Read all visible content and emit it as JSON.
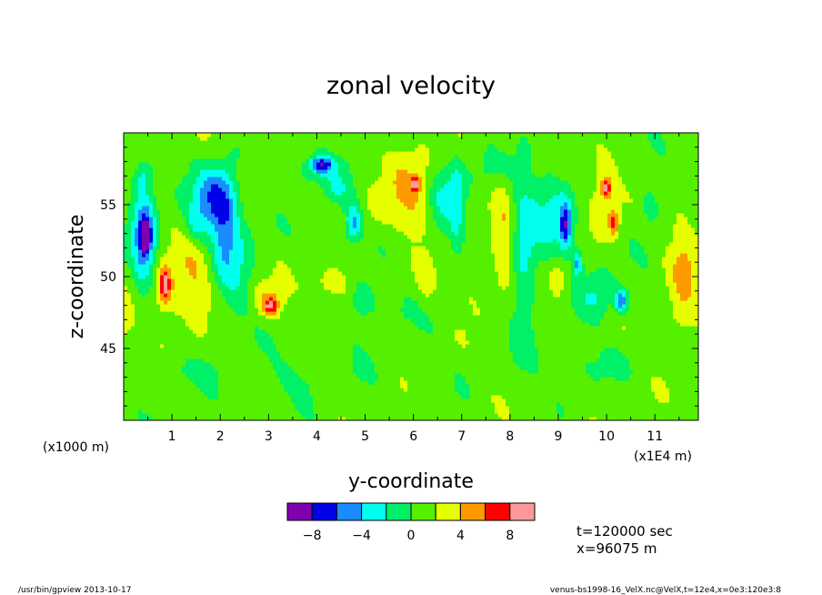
{
  "chart_data": {
    "type": "heatmap",
    "title": "zonal velocity",
    "xlabel": "y-coordinate",
    "ylabel": "z-coordinate",
    "x_unit_note": "(x1E4 m)",
    "y_unit_note": "(x1000 m)",
    "x_ticks": [
      "1",
      "2",
      "3",
      "4",
      "5",
      "6",
      "7",
      "8",
      "9",
      "10",
      "11"
    ],
    "y_ticks": [
      "45",
      "50",
      "55"
    ],
    "xlim": [
      0,
      11.9
    ],
    "ylim": [
      40,
      60
    ],
    "colorbar": {
      "colors": [
        "#8000b0",
        "#0000e6",
        "#1a8cff",
        "#00ffee",
        "#00f068",
        "#55f000",
        "#e6ff00",
        "#ff9900",
        "#ff0000",
        "#ff9999"
      ],
      "boundaries": [
        -10,
        -8,
        -6,
        -4,
        -2,
        0,
        2,
        4,
        6,
        8,
        10
      ],
      "tick_labels": [
        "-8",
        "-4",
        "0",
        "4",
        "8"
      ],
      "tick_values": [
        -8,
        -4,
        0,
        4,
        8
      ]
    },
    "annotations": {
      "time": "t=120000 sec",
      "position": "x=96075 m",
      "footer_left": "/usr/bin/gpview   2013-10-17",
      "footer_right": "venus-bs1998-16_VelX.nc@VelX,t=12e4,x=0e3:120e3:8"
    },
    "features": [
      {
        "y": 0.43,
        "z": 52.8,
        "ry": 0.25,
        "rz": 3.5,
        "v": -7
      },
      {
        "y": 0.45,
        "z": 52.8,
        "ry": 0.09,
        "rz": 1.0,
        "v": -9
      },
      {
        "y": 1.88,
        "z": 55.5,
        "ry": 0.45,
        "rz": 2.2,
        "v": -6.5
      },
      {
        "y": 2.05,
        "z": 53.5,
        "ry": 0.25,
        "rz": 3.0,
        "v": -3.5
      },
      {
        "y": 2.3,
        "z": 51.0,
        "ry": 0.35,
        "rz": 4.0,
        "v": -3
      },
      {
        "y": 4.0,
        "z": 57.6,
        "ry": 0.45,
        "rz": 1.2,
        "v": -3
      },
      {
        "y": 4.1,
        "z": 57.8,
        "ry": 0.22,
        "rz": 0.5,
        "v": -7
      },
      {
        "y": 4.75,
        "z": 53.8,
        "ry": 0.18,
        "rz": 1.3,
        "v": -6
      },
      {
        "y": 4.4,
        "z": 56.0,
        "ry": 0.25,
        "rz": 1.0,
        "v": -3
      },
      {
        "y": 4.95,
        "z": 48.5,
        "ry": 0.3,
        "rz": 1.5,
        "v": -3
      },
      {
        "y": 6.65,
        "z": 55.8,
        "ry": 0.35,
        "rz": 2.0,
        "v": -3
      },
      {
        "y": 6.9,
        "z": 54.5,
        "ry": 0.15,
        "rz": 3.5,
        "v": -3
      },
      {
        "y": 8.3,
        "z": 51.5,
        "ry": 0.25,
        "rz": 6.0,
        "v": -3.5
      },
      {
        "y": 8.9,
        "z": 54.5,
        "ry": 0.45,
        "rz": 3.0,
        "v": -3.5
      },
      {
        "y": 9.15,
        "z": 53.5,
        "ry": 0.12,
        "rz": 1.6,
        "v": -7
      },
      {
        "y": 9.4,
        "z": 51.0,
        "ry": 0.1,
        "rz": 0.9,
        "v": -6
      },
      {
        "y": 9.8,
        "z": 48.8,
        "ry": 0.35,
        "rz": 1.8,
        "v": -3
      },
      {
        "y": 10.3,
        "z": 48.3,
        "ry": 0.15,
        "rz": 0.8,
        "v": -7
      },
      {
        "y": 10.9,
        "z": 55.0,
        "ry": 0.18,
        "rz": 1.2,
        "v": -3
      },
      {
        "y": 1.5,
        "z": 53.5,
        "ry": 0.2,
        "rz": 1.2,
        "v": -3
      },
      {
        "y": 0.4,
        "z": 57.0,
        "ry": 0.2,
        "rz": 1.0,
        "v": -3
      },
      {
        "y": 0.85,
        "z": 49.0,
        "ry": 0.35,
        "rz": 2.5,
        "v": 3
      },
      {
        "y": 0.85,
        "z": 49.5,
        "ry": 0.1,
        "rz": 1.0,
        "v": 6.5
      },
      {
        "y": 1.45,
        "z": 49.8,
        "ry": 0.35,
        "rz": 3.0,
        "v": 2.7
      },
      {
        "y": 3.0,
        "z": 48.3,
        "ry": 0.35,
        "rz": 1.3,
        "v": 3
      },
      {
        "y": 3.05,
        "z": 48.0,
        "ry": 0.12,
        "rz": 0.5,
        "v": 6
      },
      {
        "y": 4.3,
        "z": 49.5,
        "ry": 0.5,
        "rz": 1.2,
        "v": 2.5
      },
      {
        "y": 5.95,
        "z": 56.0,
        "ry": 0.5,
        "rz": 3.5,
        "v": 3
      },
      {
        "y": 6.05,
        "z": 56.5,
        "ry": 0.1,
        "rz": 0.5,
        "v": 6
      },
      {
        "y": 6.3,
        "z": 50.0,
        "ry": 0.2,
        "rz": 1.5,
        "v": 2.5
      },
      {
        "y": 7.85,
        "z": 53.0,
        "ry": 0.2,
        "rz": 4.0,
        "v": 2.5
      },
      {
        "y": 9.0,
        "z": 50.0,
        "ry": 0.18,
        "rz": 1.5,
        "v": 2.5
      },
      {
        "y": 9.95,
        "z": 56.0,
        "ry": 0.35,
        "rz": 2.5,
        "v": 3
      },
      {
        "y": 10.0,
        "z": 56.2,
        "ry": 0.1,
        "rz": 0.6,
        "v": 6
      },
      {
        "y": 10.15,
        "z": 53.8,
        "ry": 0.1,
        "rz": 0.8,
        "v": 6
      },
      {
        "y": 11.6,
        "z": 50.0,
        "ry": 0.3,
        "rz": 5.0,
        "v": 3
      },
      {
        "y": 0.05,
        "z": 47.0,
        "ry": 0.15,
        "rz": 1.0,
        "v": 3
      },
      {
        "y": 5.6,
        "z": 47.5,
        "ry": 0.35,
        "rz": 1.5,
        "v": -1.2
      },
      {
        "y": 6.5,
        "z": 52.0,
        "ry": 0.25,
        "rz": 3.0,
        "v": -1.2
      },
      {
        "y": 7.2,
        "z": 50.0,
        "ry": 0.4,
        "rz": 2.5,
        "v": 1.2
      },
      {
        "y": 3.5,
        "z": 43.0,
        "ry": 1.5,
        "rz": 1.5,
        "v": -1.0
      },
      {
        "y": 9.5,
        "z": 44.0,
        "ry": 1.2,
        "rz": 1.2,
        "v": -1.0
      },
      {
        "y": 11.2,
        "z": 47.0,
        "ry": 0.3,
        "rz": 1.2,
        "v": 1.2
      },
      {
        "y": 2.6,
        "z": 57.5,
        "ry": 0.3,
        "rz": 1.0,
        "v": 1.2
      },
      {
        "y": 5.2,
        "z": 55.0,
        "ry": 0.3,
        "rz": 2.0,
        "v": 1.2
      },
      {
        "y": 7.5,
        "z": 57.5,
        "ry": 0.6,
        "rz": 1.2,
        "v": -1.2
      },
      {
        "y": 1.0,
        "z": 43.5,
        "ry": 0.8,
        "rz": 1.0,
        "v": -1.2
      }
    ]
  }
}
